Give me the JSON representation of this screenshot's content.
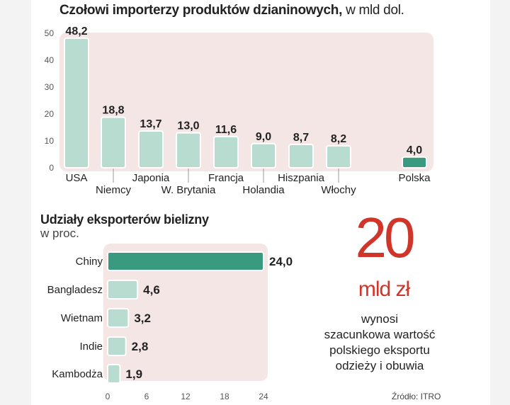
{
  "chart_data": [
    {
      "type": "bar",
      "title_bold": "Czołowi importerzy produktów dzianinowych,",
      "title_unit": "w mld dol.",
      "categories": [
        "USA",
        "Niemcy",
        "Japonia",
        "W. Brytania",
        "Francja",
        "Holandia",
        "Hiszpania",
        "Włochy",
        "Polska"
      ],
      "values": [
        48.2,
        18.8,
        13.7,
        13.0,
        11.6,
        9.0,
        8.7,
        8.2,
        4.0
      ],
      "value_labels": [
        "48,2",
        "18,8",
        "13,7",
        "13,0",
        "11,6",
        "9,0",
        "8,7",
        "8,2",
        "4,0"
      ],
      "highlight": "Polska",
      "ylim": [
        0,
        50
      ],
      "yticks": [
        "0",
        "10",
        "20",
        "30",
        "40",
        "50"
      ],
      "grid": false
    },
    {
      "type": "bar",
      "orientation": "horizontal",
      "title": "Udziały eksporterów bielizny",
      "unit": "w proc.",
      "categories": [
        "Chiny",
        "Bangladesz",
        "Wietnam",
        "Indie",
        "Kambodża"
      ],
      "values": [
        24.0,
        4.6,
        3.2,
        2.8,
        1.9
      ],
      "value_labels": [
        "24,0",
        "4,6",
        "3,2",
        "2,8",
        "1,9"
      ],
      "highlight": "Chiny",
      "xlim": [
        0,
        24
      ],
      "xticks": [
        "0",
        "6",
        "12",
        "18",
        "24"
      ],
      "grid": false
    }
  ],
  "callout": {
    "number": "20",
    "unit": "mld zł",
    "text_lines": [
      "wynosi",
      "szacunkowa wartość",
      "polskiego eksportu",
      "odzieży i obuwia"
    ]
  },
  "source": "Źródło: ITRO",
  "colors": {
    "bar": "#b8ddd0",
    "bar_highlight": "#3a9a80",
    "panel": "#f5e6e6",
    "accent": "#d0352a"
  }
}
